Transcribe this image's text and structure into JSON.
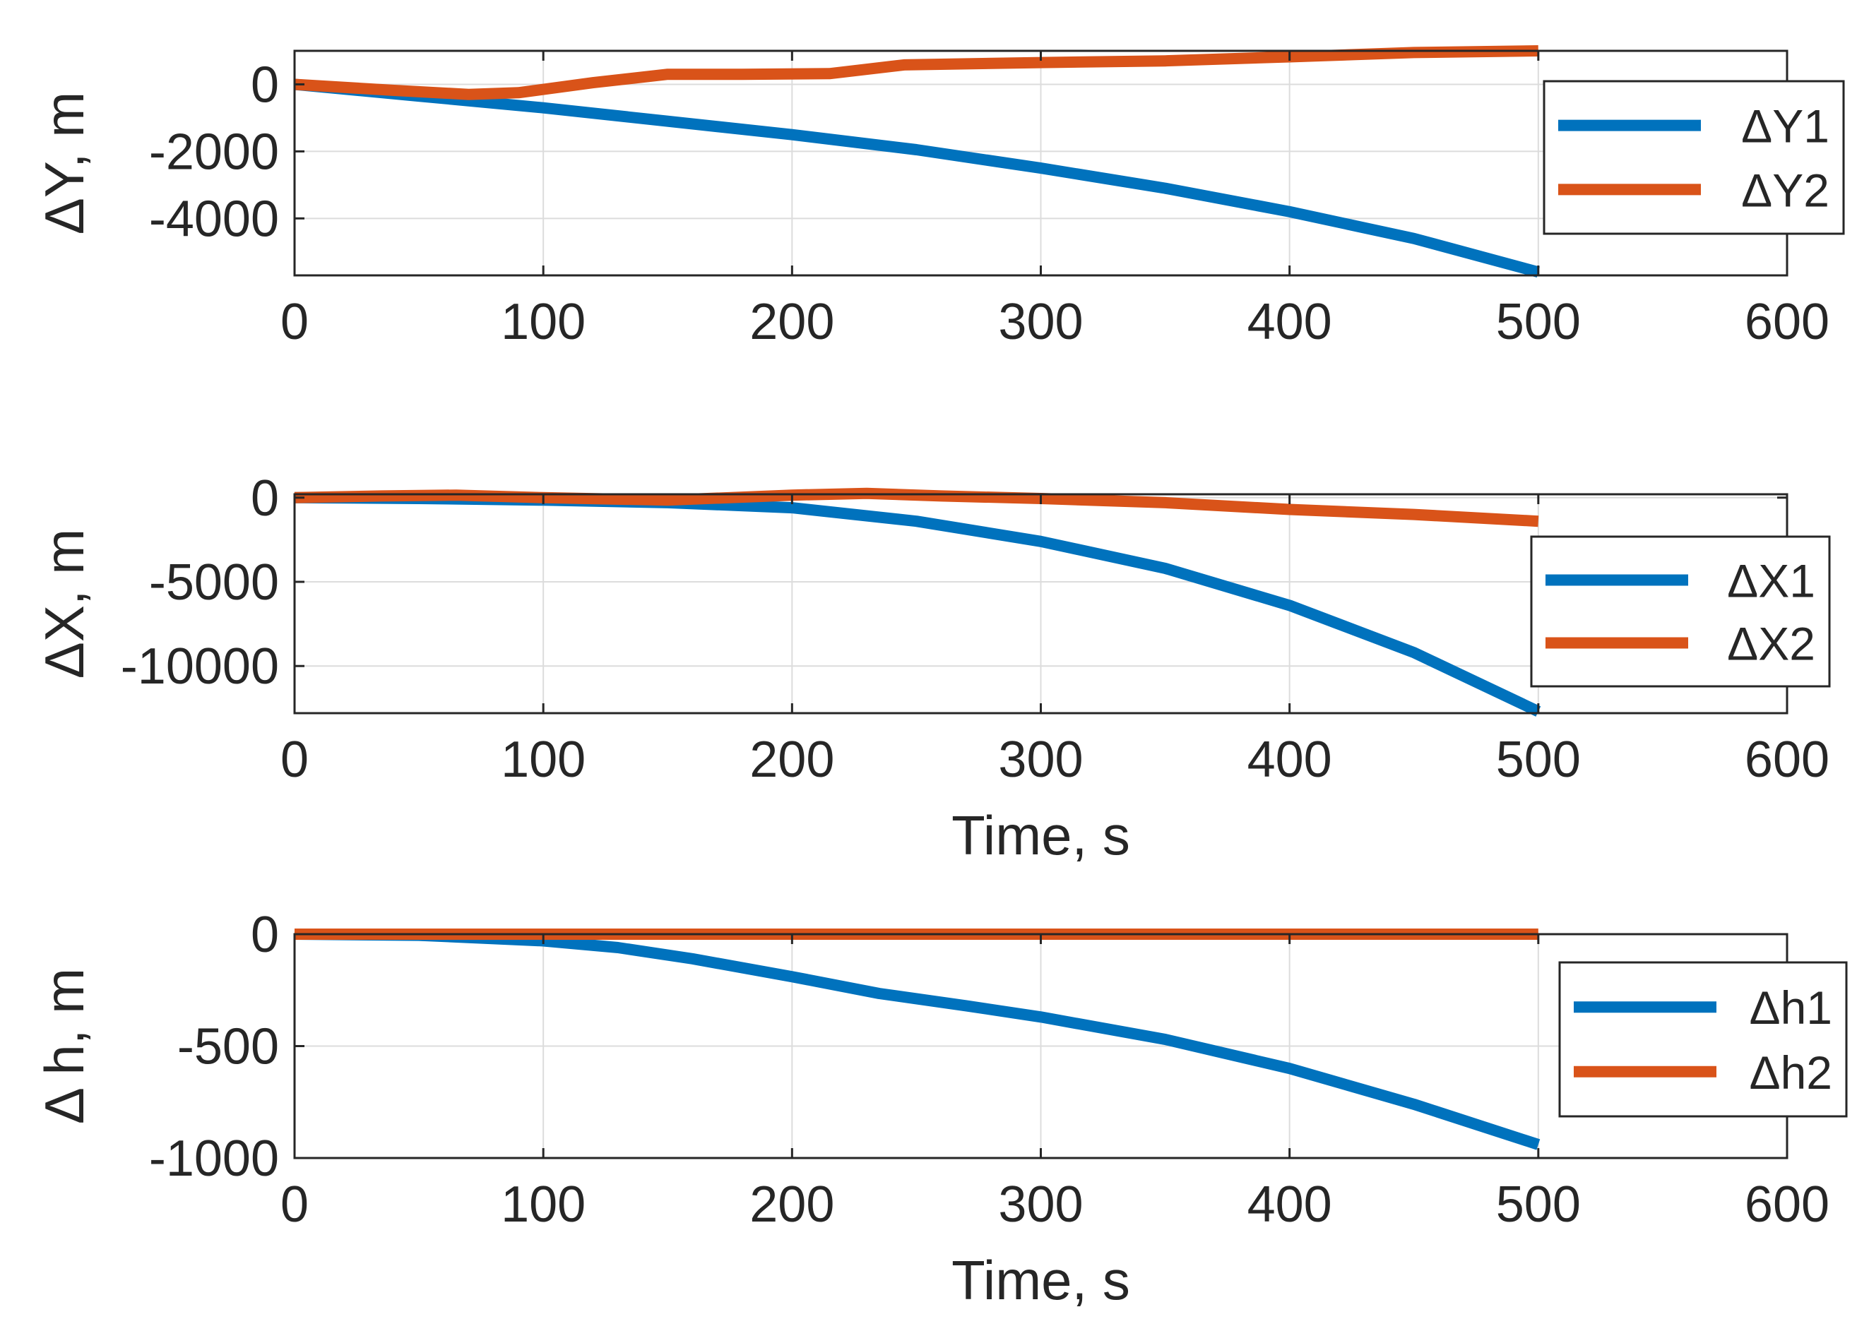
{
  "chart_data": [
    {
      "type": "line",
      "xlabel": "",
      "ylabel": "ΔY, m",
      "xlim": [
        0,
        600
      ],
      "ylim": [
        -5700,
        1000
      ],
      "xticks": [
        0,
        100,
        200,
        300,
        400,
        500,
        600
      ],
      "yticks": [
        0,
        -2000,
        -4000
      ],
      "ytick_labels": [
        "0",
        "-2000",
        "-4000"
      ],
      "grid": true,
      "legend_position": "top-right",
      "series": [
        {
          "name": "ΔY1",
          "color": "#0072BD",
          "x": [
            0,
            50,
            100,
            150,
            200,
            250,
            300,
            350,
            400,
            450,
            500
          ],
          "y": [
            0,
            -350,
            -700,
            -1100,
            -1500,
            -1950,
            -2500,
            -3100,
            -3800,
            -4600,
            -5600
          ]
        },
        {
          "name": "ΔY2",
          "color": "#D95319",
          "x": [
            0,
            40,
            70,
            90,
            120,
            150,
            180,
            215,
            245,
            300,
            350,
            400,
            450,
            500
          ],
          "y": [
            0,
            -180,
            -300,
            -250,
            50,
            300,
            300,
            320,
            580,
            650,
            700,
            820,
            950,
            1000
          ]
        }
      ]
    },
    {
      "type": "line",
      "xlabel": "Time, s",
      "ylabel": "ΔX, m",
      "xlim": [
        0,
        600
      ],
      "ylim": [
        -12800,
        200
      ],
      "xticks": [
        0,
        100,
        200,
        300,
        400,
        500,
        600
      ],
      "yticks": [
        0,
        -5000,
        -10000
      ],
      "ytick_labels": [
        "0",
        "-5000",
        "-10000"
      ],
      "grid": true,
      "legend_position": "right",
      "series": [
        {
          "name": "ΔX1",
          "color": "#0072BD",
          "x": [
            0,
            50,
            100,
            150,
            200,
            250,
            300,
            350,
            400,
            450,
            500
          ],
          "y": [
            0,
            -50,
            -150,
            -300,
            -600,
            -1400,
            -2600,
            -4200,
            -6400,
            -9200,
            -12700
          ]
        },
        {
          "name": "ΔX2",
          "color": "#D95319",
          "x": [
            0,
            35,
            65,
            100,
            150,
            200,
            230,
            260,
            300,
            350,
            400,
            450,
            500
          ],
          "y": [
            0,
            100,
            150,
            0,
            -150,
            150,
            250,
            100,
            -50,
            -300,
            -700,
            -1000,
            -1400
          ]
        }
      ]
    },
    {
      "type": "line",
      "xlabel": "Time, s",
      "ylabel": "Δ h, m",
      "xlim": [
        0,
        600
      ],
      "ylim": [
        -1000,
        0
      ],
      "xticks": [
        0,
        100,
        200,
        300,
        400,
        500,
        600
      ],
      "yticks": [
        0,
        -500,
        -1000
      ],
      "ytick_labels": [
        "0",
        "-500",
        "-1000"
      ],
      "grid": true,
      "legend_position": "right",
      "series": [
        {
          "name": "Δh1",
          "color": "#0072BD",
          "x": [
            0,
            50,
            100,
            130,
            160,
            200,
            235,
            270,
            300,
            350,
            400,
            450,
            500
          ],
          "y": [
            0,
            -5,
            -30,
            -60,
            -110,
            -190,
            -265,
            -320,
            -370,
            -470,
            -600,
            -760,
            -940
          ]
        },
        {
          "name": "Δh2",
          "color": "#D95319",
          "x": [
            0,
            100,
            200,
            300,
            400,
            500
          ],
          "y": [
            0,
            0,
            0,
            0,
            0,
            0
          ]
        }
      ]
    }
  ]
}
